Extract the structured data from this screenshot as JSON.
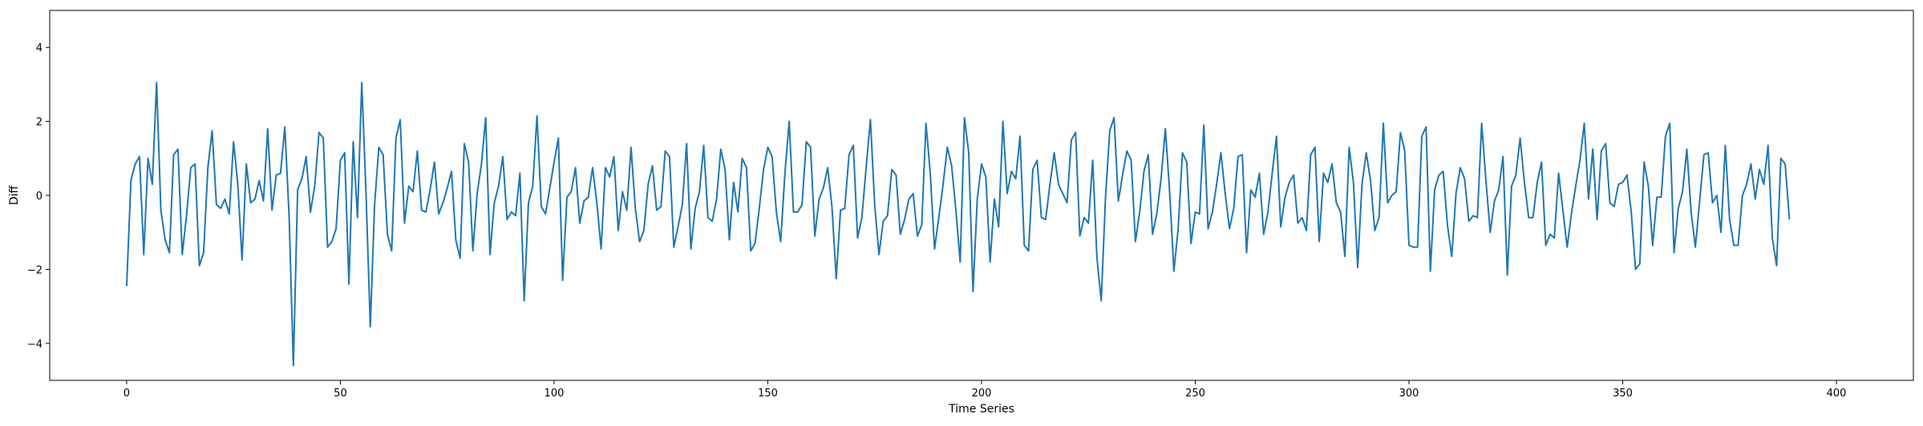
{
  "chart_data": {
    "type": "line",
    "title": "",
    "xlabel": "Time Series",
    "ylabel": "Diff",
    "xlim": [
      -18,
      418
    ],
    "ylim": [
      -5,
      5
    ],
    "xticks": [
      0,
      50,
      100,
      150,
      200,
      250,
      300,
      350,
      400
    ],
    "yticks": [
      -4,
      -2,
      0,
      2,
      4
    ],
    "grid": false,
    "series": [
      {
        "color": "#1f77b4",
        "values": [
          -2.45,
          0.4,
          0.85,
          1.05,
          -1.6,
          1.0,
          0.3,
          3.05,
          -0.4,
          -1.2,
          -1.55,
          1.1,
          1.25,
          -1.6,
          -0.55,
          0.75,
          0.85,
          -1.9,
          -1.55,
          0.75,
          1.75,
          -0.25,
          -0.35,
          -0.1,
          -0.5,
          1.45,
          0.3,
          -1.75,
          0.85,
          -0.2,
          -0.1,
          0.4,
          -0.15,
          1.8,
          -0.4,
          0.55,
          0.6,
          1.85,
          -0.55,
          -4.6,
          0.15,
          0.45,
          1.05,
          -0.45,
          0.25,
          1.7,
          1.55,
          -1.4,
          -1.25,
          -0.9,
          0.95,
          1.15,
          -2.4,
          1.45,
          -0.6,
          3.05,
          0.05,
          -3.55,
          -0.25,
          1.3,
          1.1,
          -1.05,
          -1.5,
          1.55,
          2.05,
          -0.75,
          0.25,
          0.1,
          1.2,
          -0.4,
          -0.45,
          0.15,
          0.9,
          -0.5,
          -0.2,
          0.2,
          0.65,
          -1.2,
          -1.7,
          1.4,
          0.9,
          -1.5,
          0.05,
          0.85,
          2.1,
          -1.6,
          -0.2,
          0.25,
          1.05,
          -0.65,
          -0.45,
          -0.55,
          0.6,
          -2.85,
          -0.2,
          0.25,
          2.15,
          -0.3,
          -0.5,
          0.2,
          0.9,
          1.55,
          -2.3,
          -0.05,
          0.1,
          0.75,
          -0.75,
          -0.15,
          -0.05,
          0.75,
          -0.2,
          -1.45,
          0.75,
          0.5,
          1.05,
          -0.95,
          0.1,
          -0.4,
          1.3,
          -0.35,
          -1.25,
          -0.95,
          0.3,
          0.8,
          -0.4,
          -0.3,
          1.2,
          1.05,
          -1.4,
          -0.85,
          -0.25,
          1.4,
          -1.45,
          -0.35,
          0.1,
          1.35,
          -0.6,
          -0.7,
          -0.1,
          1.25,
          0.7,
          -1.2,
          0.35,
          -0.45,
          1.0,
          0.75,
          -1.5,
          -1.3,
          -0.35,
          0.7,
          1.3,
          1.05,
          -0.45,
          -1.25,
          0.6,
          2.0,
          -0.45,
          -0.45,
          -0.25,
          1.45,
          1.3,
          -1.1,
          -0.1,
          0.2,
          0.75,
          -0.3,
          -2.25,
          -0.4,
          -0.35,
          1.1,
          1.35,
          -1.15,
          -0.6,
          0.75,
          2.05,
          -0.25,
          -1.6,
          -0.7,
          -0.55,
          0.7,
          0.55,
          -1.05,
          -0.65,
          -0.1,
          0.05,
          -1.1,
          -0.8,
          1.95,
          0.6,
          -1.45,
          -0.6,
          0.3,
          1.3,
          0.8,
          -0.4,
          -1.8,
          2.1,
          1.15,
          -2.6,
          -0.1,
          0.85,
          0.5,
          -1.8,
          -0.1,
          -0.85,
          2.0,
          0.05,
          0.65,
          0.45,
          1.6,
          -1.35,
          -1.5,
          0.7,
          0.95,
          -0.6,
          -0.65,
          0.3,
          1.15,
          0.3,
          0.05,
          -0.2,
          1.5,
          1.7,
          -1.1,
          -0.6,
          -0.75,
          0.95,
          -1.7,
          -2.85,
          -0.05,
          1.75,
          2.1,
          -0.15,
          0.55,
          1.2,
          0.95,
          -1.25,
          -0.45,
          0.65,
          1.1,
          -1.05,
          -0.5,
          0.45,
          1.8,
          0.1,
          -2.05,
          -0.9,
          1.15,
          0.9,
          -1.3,
          -0.45,
          -0.5,
          1.9,
          -0.9,
          -0.45,
          0.3,
          1.15,
          0.05,
          -0.9,
          -0.35,
          1.05,
          1.1,
          -1.55,
          0.15,
          -0.05,
          0.6,
          -1.05,
          -0.45,
          0.6,
          1.6,
          -0.85,
          -0.05,
          0.35,
          0.55,
          -0.75,
          -0.6,
          -0.95,
          1.1,
          1.3,
          -1.25,
          0.6,
          0.35,
          0.85,
          -0.2,
          -0.45,
          -1.65,
          1.3,
          0.35,
          -1.95,
          0.3,
          1.15,
          0.4,
          -0.95,
          -0.6,
          1.95,
          -0.2,
          0.0,
          0.1,
          1.7,
          1.2,
          -1.35,
          -1.4,
          -1.4,
          1.6,
          1.85,
          -2.05,
          0.15,
          0.55,
          0.65,
          -0.8,
          -1.65,
          0.05,
          0.75,
          0.45,
          -0.7,
          -0.55,
          -0.6,
          1.95,
          0.4,
          -1.0,
          -0.15,
          0.15,
          1.05,
          -2.15,
          0.25,
          0.55,
          1.55,
          0.35,
          -0.6,
          -0.6,
          0.35,
          0.9,
          -1.35,
          -1.05,
          -1.15,
          0.6,
          -0.4,
          -1.4,
          -0.5,
          0.25,
          0.95,
          1.95,
          -0.1,
          1.25,
          -0.65,
          1.2,
          1.4,
          -0.2,
          -0.3,
          0.3,
          0.35,
          0.55,
          -0.45,
          -2.0,
          -1.85,
          0.9,
          0.25,
          -1.35,
          -0.05,
          -0.05,
          1.6,
          1.95,
          -1.55,
          -0.35,
          0.1,
          1.25,
          -0.45,
          -1.4,
          -0.15,
          1.1,
          1.15,
          -0.2,
          0.0,
          -1.0,
          1.35,
          -0.65,
          -1.35,
          -1.35,
          0.0,
          0.3,
          0.85,
          -0.1,
          0.7,
          0.3,
          1.35,
          -1.15,
          -1.9,
          1.0,
          0.85,
          -0.65
        ]
      }
    ]
  }
}
